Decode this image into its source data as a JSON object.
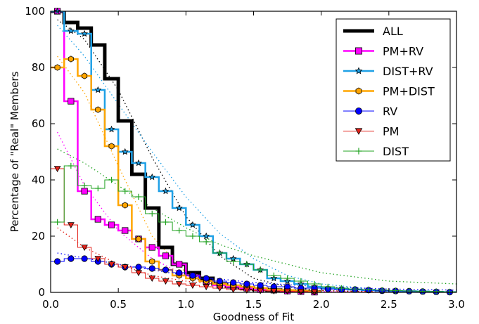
{
  "chart_data": {
    "type": "line",
    "title": "",
    "xlabel": "Goodness of Fit",
    "ylabel": "Percentage of \"Real\" Members",
    "xlim": [
      0,
      3.0
    ],
    "ylim": [
      0,
      100
    ],
    "xticks": [
      "0.0",
      "0.5",
      "1.0",
      "1.5",
      "2.0",
      "2.5",
      "3.0"
    ],
    "yticks": [
      "0",
      "20",
      "40",
      "60",
      "80",
      "100"
    ],
    "xtick_values": [
      0,
      0.5,
      1.0,
      1.5,
      2.0,
      2.5,
      3.0
    ],
    "ytick_values": [
      0,
      20,
      40,
      60,
      80,
      100
    ],
    "grid": false,
    "legend_position": "top-right",
    "series": [
      {
        "name": "ALL",
        "color": "#000000",
        "marker": "none",
        "line_width": 5,
        "x": [
          0.05,
          0.15,
          0.25,
          0.35,
          0.45,
          0.55,
          0.65,
          0.75,
          0.85,
          0.95,
          1.05,
          1.15,
          1.25,
          1.35,
          1.45,
          1.55,
          1.65,
          1.75,
          1.85,
          1.95
        ],
        "y": [
          100,
          96,
          94,
          88,
          76,
          61,
          42,
          30,
          16,
          10,
          7,
          5,
          3,
          2,
          1.5,
          1,
          0.8,
          0.5,
          0.3,
          0.1
        ]
      },
      {
        "name": "PM+RV",
        "color": "#ff00ff",
        "marker": "square",
        "line_width": 2.5,
        "x": [
          0.05,
          0.15,
          0.25,
          0.35,
          0.45,
          0.55,
          0.65,
          0.75,
          0.85,
          0.95,
          1.05,
          1.15,
          1.25,
          1.35,
          1.45,
          1.55,
          1.65,
          1.75,
          1.85,
          1.95
        ],
        "y": [
          100,
          68,
          36,
          26,
          24,
          22,
          19,
          16,
          13,
          10,
          6,
          4,
          2.5,
          2,
          1.5,
          1,
          0.8,
          0.5,
          0.3,
          0.1
        ]
      },
      {
        "name": "DIST+RV",
        "color": "#1ea0e6",
        "marker": "star",
        "line_width": 2.5,
        "x": [
          0.05,
          0.15,
          0.25,
          0.35,
          0.45,
          0.55,
          0.65,
          0.75,
          0.85,
          0.95,
          1.05,
          1.15,
          1.25,
          1.35,
          1.45,
          1.55,
          1.65,
          1.75,
          1.85,
          1.95,
          2.05,
          2.15,
          2.25,
          2.35,
          2.45,
          2.55,
          2.65,
          2.75,
          2.85,
          2.95
        ],
        "y": [
          100,
          93,
          92,
          72,
          58,
          50,
          46,
          41,
          36,
          30,
          24,
          20,
          14,
          12,
          10,
          8,
          5,
          4,
          3,
          2,
          1.5,
          1.2,
          1,
          0.8,
          0.6,
          0.5,
          0.4,
          0.3,
          0.2,
          0.1
        ]
      },
      {
        "name": "PM+DIST",
        "color": "#ffa500",
        "marker": "hexagon",
        "line_width": 2.5,
        "x": [
          0.05,
          0.15,
          0.25,
          0.35,
          0.45,
          0.55,
          0.65,
          0.75,
          0.85,
          0.95,
          1.05,
          1.15,
          1.25,
          1.35,
          1.45,
          1.55,
          1.65,
          1.75,
          1.85,
          1.95
        ],
        "y": [
          80,
          83,
          77,
          65,
          52,
          31,
          19,
          11,
          8,
          6,
          5,
          4,
          3,
          2.5,
          2,
          1.5,
          1,
          0.8,
          0.5,
          0.3
        ]
      },
      {
        "name": "RV",
        "color": "#0000ff",
        "marker": "circle",
        "line_width": 1,
        "x": [
          0.05,
          0.15,
          0.25,
          0.35,
          0.45,
          0.55,
          0.65,
          0.75,
          0.85,
          0.95,
          1.05,
          1.15,
          1.25,
          1.35,
          1.45,
          1.55,
          1.65,
          1.75,
          1.85,
          1.95,
          2.05,
          2.15,
          2.25,
          2.35,
          2.45,
          2.55,
          2.65,
          2.75,
          2.85,
          2.95
        ],
        "y": [
          11,
          12,
          12,
          11,
          10,
          9,
          9,
          8.5,
          8,
          7,
          6,
          5,
          4,
          3.5,
          3,
          2.5,
          2,
          2,
          1.5,
          1.5,
          1.2,
          1,
          1,
          0.8,
          0.6,
          0.5,
          0.4,
          0.3,
          0.2,
          0.1
        ]
      },
      {
        "name": "PM",
        "color": "#e32119",
        "marker": "triangle-down",
        "line_width": 1,
        "x": [
          0.05,
          0.15,
          0.25,
          0.35,
          0.45,
          0.55,
          0.65,
          0.75,
          0.85,
          0.95,
          1.05,
          1.15,
          1.25,
          1.35,
          1.45,
          1.55,
          1.65,
          1.75,
          1.85,
          1.95
        ],
        "y": [
          44,
          24,
          16,
          12,
          10,
          9,
          7,
          5,
          4,
          3,
          2.5,
          2,
          1.5,
          1,
          0.8,
          0.6,
          0.5,
          0.4,
          0.3,
          0.2
        ]
      },
      {
        "name": "DIST",
        "color": "#22a322",
        "marker": "plus",
        "line_width": 1,
        "x": [
          0.05,
          0.15,
          0.25,
          0.35,
          0.45,
          0.55,
          0.65,
          0.75,
          0.85,
          0.95,
          1.05,
          1.15,
          1.25,
          1.35,
          1.45,
          1.55,
          1.65,
          1.75,
          1.85,
          1.95,
          2.05,
          2.15,
          2.25,
          2.35,
          2.45,
          2.55,
          2.65,
          2.75,
          2.85,
          2.95
        ],
        "y": [
          25,
          45,
          38,
          37,
          40,
          36,
          34,
          28,
          25,
          22,
          20,
          18,
          14,
          11,
          10,
          8,
          6,
          5,
          4,
          3,
          2,
          1.5,
          1.2,
          1,
          0.8,
          0.6,
          0.5,
          0.4,
          0.3,
          0.2
        ]
      }
    ],
    "fit_curves": [
      {
        "color": "#000000",
        "x": [
          0.05,
          0.25,
          0.5,
          0.75,
          1.0,
          1.25,
          1.5,
          1.75,
          2.0,
          2.5,
          3.0
        ],
        "y": [
          97,
          90,
          72,
          48,
          27,
          13,
          5,
          2,
          0.6,
          0.1,
          0
        ]
      },
      {
        "color": "#ff00ff",
        "x": [
          0.05,
          0.25,
          0.5,
          0.75,
          1.0,
          1.25,
          1.5,
          2.0,
          2.5,
          3.0
        ],
        "y": [
          57,
          38,
          22,
          12,
          6,
          3,
          1.5,
          0.3,
          0.1,
          0
        ]
      },
      {
        "color": "#1ea0e6",
        "x": [
          0.05,
          0.25,
          0.5,
          0.75,
          1.0,
          1.25,
          1.5,
          1.75,
          2.0,
          2.5,
          3.0
        ],
        "y": [
          95,
          84,
          67,
          50,
          34,
          21,
          12,
          6,
          3,
          0.6,
          0.1
        ]
      },
      {
        "color": "#ffa500",
        "x": [
          0.05,
          0.25,
          0.5,
          0.75,
          1.0,
          1.25,
          1.5,
          2.0,
          2.5,
          3.0
        ],
        "y": [
          84,
          71,
          45,
          20,
          7,
          2,
          0.6,
          0.1,
          0,
          0
        ]
      },
      {
        "color": "#0000ff",
        "x": [
          0.05,
          0.5,
          1.0,
          1.5,
          2.0,
          2.5,
          3.0
        ],
        "y": [
          14,
          10,
          6,
          3.5,
          2,
          1.2,
          0.8
        ]
      },
      {
        "color": "#e32119",
        "x": [
          0.05,
          0.25,
          0.5,
          0.75,
          1.0,
          1.5,
          2.0,
          2.5,
          3.0
        ],
        "y": [
          23,
          16,
          10,
          6,
          4,
          1.5,
          0.6,
          0.2,
          0.1
        ]
      },
      {
        "color": "#22a322",
        "x": [
          0.05,
          0.25,
          0.5,
          0.75,
          1.0,
          1.25,
          1.5,
          1.75,
          2.0,
          2.5,
          3.0
        ],
        "y": [
          51,
          46,
          38,
          30,
          23,
          17,
          13,
          10,
          7,
          4,
          3
        ]
      }
    ]
  }
}
